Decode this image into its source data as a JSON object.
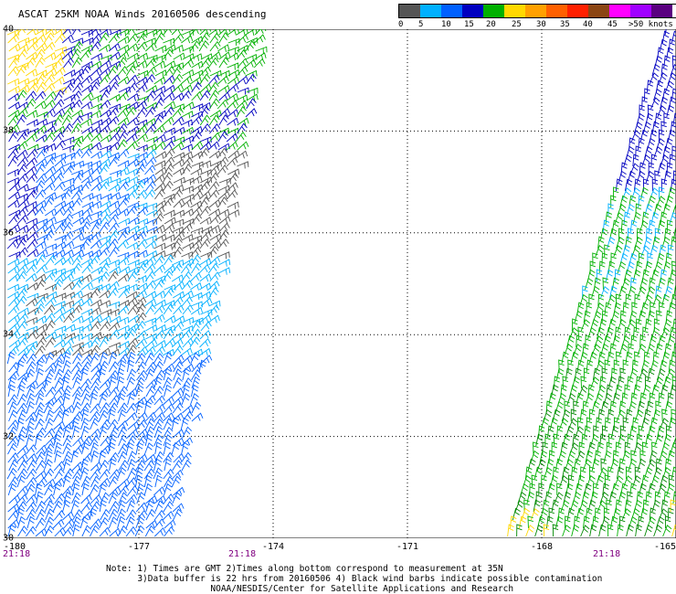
{
  "title": "ASCAT 25KM NOAA Winds 20160506 descending",
  "legend": {
    "colors": [
      "#555555",
      "#00b0ff",
      "#0060ff",
      "#0000c0",
      "#00b000",
      "#ffd800",
      "#ffa000",
      "#ff6000",
      "#ff2000",
      "#8b4513",
      "#ff00ff",
      "#a000ff",
      "#5a0080"
    ],
    "labels": [
      "0",
      "5",
      "10",
      "15",
      "20",
      "25",
      "30",
      "35",
      "40",
      "45",
      ">50 knots"
    ]
  },
  "chart_data": {
    "type": "map",
    "title": "ASCAT 25KM NOAA Winds 20160506 descending",
    "lat_ticks": [
      "40",
      "38",
      "36",
      "34",
      "32",
      "30"
    ],
    "lon_ticks": [
      "-180",
      "-177",
      "-174",
      "-171",
      "-168",
      "-165"
    ],
    "lat_range": [
      30,
      40
    ],
    "lon_range": [
      -180,
      -165
    ],
    "grid": "dotted",
    "swath_times": [
      "21:18",
      "21:18",
      "21:18"
    ],
    "wind_speed_legend_knots": [
      0,
      5,
      10,
      15,
      20,
      25,
      30,
      35,
      40,
      45,
      50
    ]
  },
  "notes": {
    "line1": "Note: 1) Times are GMT 2)Times along bottom correspond to measurement at 35N",
    "line2": "      3)Data buffer is 22 hrs from 20160506 4) Black wind barbs indicate possible contamination",
    "line3": "                    NOAA/NESDIS/Center for Satellite Applications and Research"
  }
}
